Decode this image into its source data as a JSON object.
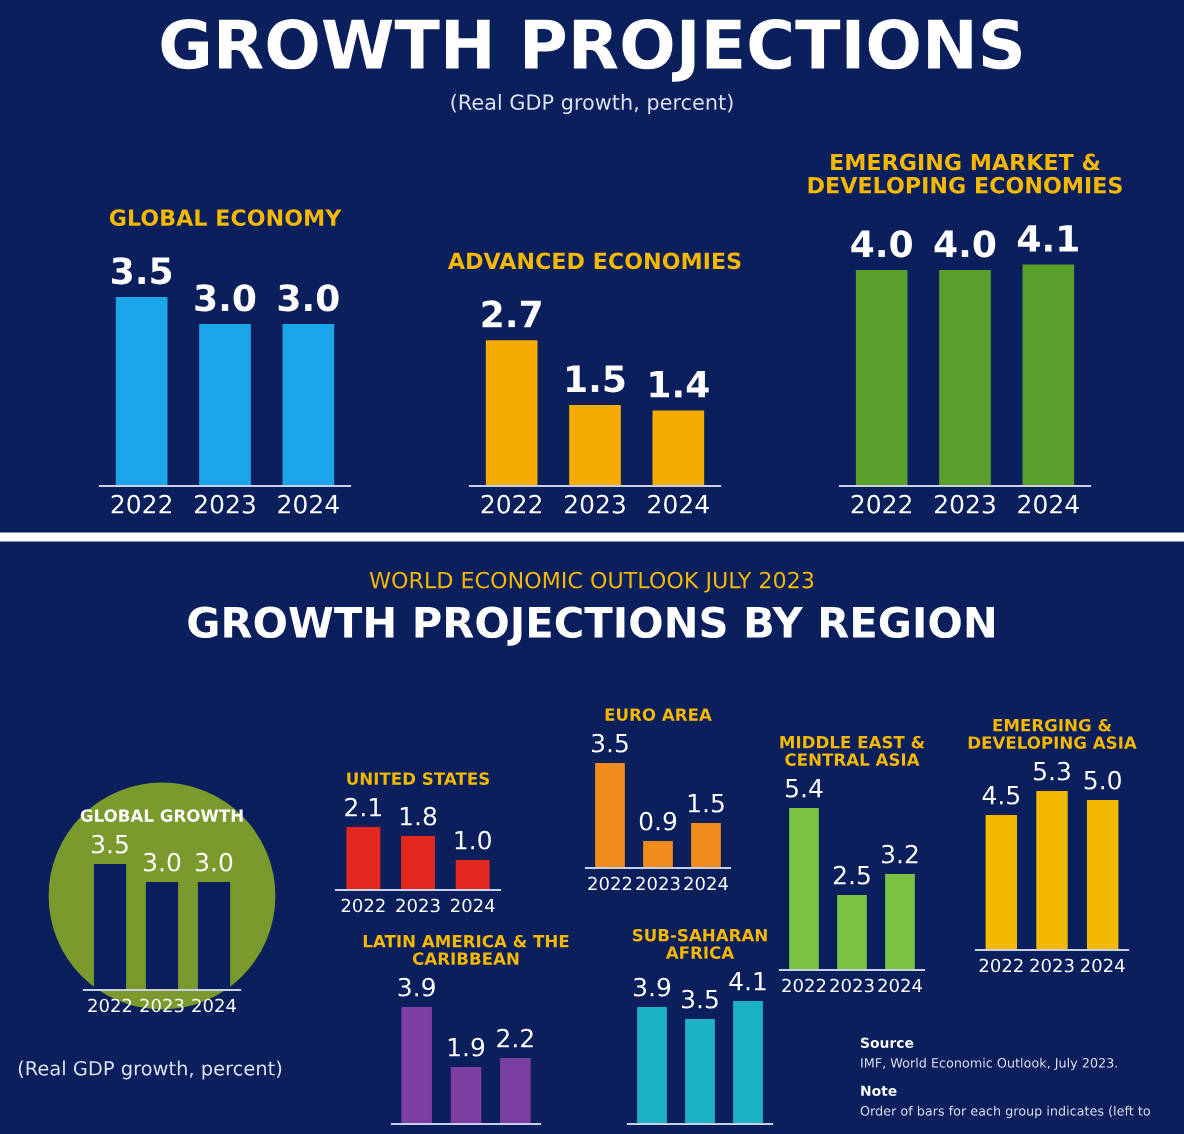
{
  "chart_data": [
    {
      "type": "bar",
      "title": "GLOBAL ECONOMY",
      "categories": [
        "2022",
        "2023",
        "2024"
      ],
      "values": [
        3.5,
        3.0,
        3.0
      ],
      "color": "#1ba6ea",
      "value_labels": [
        "3.5",
        "3.0",
        "3.0"
      ],
      "annotations": [
        "GROWTH PROJECTIONS",
        "(Real GDP growth, percent)"
      ]
    },
    {
      "type": "bar",
      "title": "ADVANCED ECONOMIES",
      "categories": [
        "2022",
        "2023",
        "2024"
      ],
      "values": [
        2.7,
        1.5,
        1.4
      ],
      "color": "#f5ab00",
      "value_labels": [
        "2.7",
        "1.5",
        "1.4"
      ]
    },
    {
      "type": "bar",
      "title": "EMERGING MARKET &\nDEVELOPING ECONOMIES",
      "categories": [
        "2022",
        "2023",
        "2024"
      ],
      "values": [
        4.0,
        4.0,
        4.1
      ],
      "color": "#5a9e2c",
      "value_labels": [
        "4.0",
        "4.0",
        "4.1"
      ]
    },
    {
      "type": "bar",
      "title": "GLOBAL GROWTH",
      "categories": [
        "2022",
        "2023",
        "2024"
      ],
      "values": [
        3.5,
        3.0,
        3.0
      ],
      "color": "#0b1f5e",
      "value_labels": [
        "3.5",
        "3.0",
        "3.0"
      ],
      "annotations": [
        "WORLD ECONOMIC OUTLOOK JULY 2023",
        "GROWTH PROJECTIONS BY REGION",
        "(Real GDP growth, percent)",
        "Source",
        "IMF, World Economic Outlook, July 2023.",
        "Note",
        "Order of bars for each group indicates (left to"
      ]
    },
    {
      "type": "bar",
      "title": "UNITED STATES",
      "categories": [
        "2022",
        "2023",
        "2024"
      ],
      "values": [
        2.1,
        1.8,
        1.0
      ],
      "color": "#e2281e",
      "value_labels": [
        "2.1",
        "1.8",
        "1.0"
      ]
    },
    {
      "type": "bar",
      "title": "EURO AREA",
      "categories": [
        "2022",
        "2023",
        "2024"
      ],
      "values": [
        3.5,
        0.9,
        1.5
      ],
      "color": "#f28a1c",
      "value_labels": [
        "3.5",
        "0.9",
        "1.5"
      ]
    },
    {
      "type": "bar",
      "title": "MIDDLE EAST &\nCENTRAL ASIA",
      "categories": [
        "2022",
        "2023",
        "2024"
      ],
      "values": [
        5.4,
        2.5,
        3.2
      ],
      "color": "#7cc242",
      "value_labels": [
        "5.4",
        "2.5",
        "3.2"
      ]
    },
    {
      "type": "bar",
      "title": "EMERGING &\nDEVELOPING ASIA",
      "categories": [
        "2022",
        "2023",
        "2024"
      ],
      "values": [
        4.5,
        5.3,
        5.0
      ],
      "color": "#f5b800",
      "value_labels": [
        "4.5",
        "5.3",
        "5.0"
      ]
    },
    {
      "type": "bar",
      "title": "LATIN AMERICA & THE\nCARIBBEAN",
      "categories": [
        null,
        null,
        null
      ],
      "values": [
        3.9,
        1.9,
        2.2
      ],
      "color": "#7a3fa0",
      "value_labels": [
        "3.9",
        "1.9",
        "2.2"
      ]
    },
    {
      "type": "bar",
      "title": "SUB-SAHARAN\nAFRICA",
      "categories": [
        null,
        null,
        null
      ],
      "values": [
        3.9,
        3.5,
        4.1
      ],
      "color": "#1ab2c4",
      "value_labels": [
        "3.9",
        "3.5",
        "4.1"
      ]
    }
  ]
}
